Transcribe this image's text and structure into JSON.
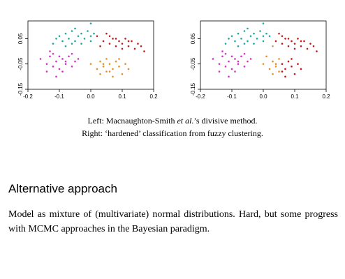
{
  "caption_left": {
    "prefix": "Left: Macnaughton-Smith ",
    "italic": "et al.",
    "suffix": "’s divisive method."
  },
  "caption_right": "Right: ‘hardened’ classification from fuzzy clustering.",
  "section_heading": "Alternative approach",
  "body_text": "Model as mixture of (multivariate) normal distributions.  Hard, but some progress with MCMC approaches in the Bayesian paradigm.",
  "colors": {
    "cyan": "#1aa7a0",
    "red": "#c21a1a",
    "magenta": "#d630c6",
    "orange": "#e6902a"
  },
  "chart_data": [
    {
      "type": "scatter",
      "panel": "left",
      "xlim": [
        -0.2,
        0.2
      ],
      "ylim": [
        -0.15,
        0.12
      ],
      "x_ticks": [
        "-0.2",
        "-0.1",
        "0.0",
        "0.1",
        "0.2"
      ],
      "y_ticks": [
        "-0.15",
        "-0.05",
        "0.05"
      ],
      "x_tick_values": [
        -0.2,
        -0.1,
        0.0,
        0.1,
        0.2
      ],
      "y_tick_values": [
        -0.15,
        -0.05,
        0.05
      ],
      "series": [
        {
          "color": "cyan",
          "points": [
            [
              -0.12,
              0.03
            ],
            [
              -0.1,
              0.06
            ],
            [
              -0.09,
              0.04
            ],
            [
              -0.08,
              0.07
            ],
            [
              -0.07,
              0.05
            ],
            [
              -0.06,
              0.08
            ],
            [
              -0.05,
              0.04
            ],
            [
              -0.04,
              0.06
            ],
            [
              -0.03,
              0.07
            ],
            [
              -0.02,
              0.05
            ],
            [
              -0.01,
              0.08
            ],
            [
              0.0,
              0.06
            ],
            [
              0.01,
              0.07
            ],
            [
              -0.11,
              0.05
            ],
            [
              -0.08,
              0.02
            ],
            [
              -0.06,
              0.03
            ],
            [
              -0.03,
              0.03
            ],
            [
              0.0,
              0.04
            ],
            [
              -0.05,
              0.09
            ],
            [
              0.0,
              0.11
            ]
          ]
        },
        {
          "color": "red",
          "points": [
            [
              0.02,
              0.06
            ],
            [
              0.04,
              0.04
            ],
            [
              0.05,
              0.07
            ],
            [
              0.06,
              0.03
            ],
            [
              0.07,
              0.05
            ],
            [
              0.08,
              0.02
            ],
            [
              0.09,
              0.04
            ],
            [
              0.1,
              0.03
            ],
            [
              0.11,
              0.05
            ],
            [
              0.12,
              0.02
            ],
            [
              0.13,
              0.04
            ],
            [
              0.14,
              0.01
            ],
            [
              0.15,
              0.03
            ],
            [
              0.16,
              0.02
            ],
            [
              0.17,
              0.0
            ],
            [
              0.06,
              0.06
            ],
            [
              0.03,
              0.02
            ],
            [
              0.08,
              0.05
            ],
            [
              0.1,
              0.01
            ],
            [
              0.12,
              0.04
            ]
          ]
        },
        {
          "color": "magenta",
          "points": [
            [
              -0.16,
              -0.03
            ],
            [
              -0.14,
              -0.05
            ],
            [
              -0.13,
              -0.02
            ],
            [
              -0.12,
              -0.06
            ],
            [
              -0.11,
              -0.04
            ],
            [
              -0.1,
              -0.07
            ],
            [
              -0.09,
              -0.03
            ],
            [
              -0.08,
              -0.05
            ],
            [
              -0.07,
              -0.02
            ],
            [
              -0.06,
              -0.06
            ],
            [
              -0.05,
              -0.04
            ],
            [
              -0.04,
              -0.03
            ],
            [
              -0.12,
              -0.01
            ],
            [
              -0.09,
              -0.08
            ],
            [
              -0.11,
              -0.1
            ],
            [
              -0.13,
              0.0
            ],
            [
              -0.06,
              -0.01
            ],
            [
              -0.08,
              -0.04
            ],
            [
              -0.1,
              -0.02
            ],
            [
              -0.14,
              -0.08
            ]
          ]
        },
        {
          "color": "orange",
          "points": [
            [
              0.0,
              -0.05
            ],
            [
              0.02,
              -0.07
            ],
            [
              0.03,
              -0.04
            ],
            [
              0.04,
              -0.06
            ],
            [
              0.05,
              -0.08
            ],
            [
              0.06,
              -0.05
            ],
            [
              0.07,
              -0.07
            ],
            [
              0.08,
              -0.04
            ],
            [
              0.09,
              -0.06
            ],
            [
              0.1,
              -0.09
            ],
            [
              0.11,
              -0.05
            ],
            [
              0.12,
              -0.07
            ],
            [
              0.05,
              -0.03
            ],
            [
              0.07,
              -0.1
            ],
            [
              0.03,
              -0.09
            ],
            [
              0.09,
              -0.03
            ],
            [
              0.04,
              -0.05
            ],
            [
              0.06,
              -0.08
            ]
          ]
        }
      ]
    },
    {
      "type": "scatter",
      "panel": "right",
      "xlim": [
        -0.2,
        0.2
      ],
      "ylim": [
        -0.15,
        0.12
      ],
      "x_ticks": [
        "-0.2",
        "-0.1",
        "0.0",
        "0.1",
        "0.2"
      ],
      "y_ticks": [
        "-0.15",
        "-0.05",
        "0.05"
      ],
      "x_tick_values": [
        -0.2,
        -0.1,
        0.0,
        0.1,
        0.2
      ],
      "y_tick_values": [
        -0.15,
        -0.05,
        0.05
      ],
      "series": [
        {
          "color": "cyan",
          "points": [
            [
              -0.12,
              0.03
            ],
            [
              -0.1,
              0.06
            ],
            [
              -0.09,
              0.04
            ],
            [
              -0.08,
              0.07
            ],
            [
              -0.07,
              0.05
            ],
            [
              -0.06,
              0.08
            ],
            [
              -0.05,
              0.04
            ],
            [
              -0.04,
              0.06
            ],
            [
              -0.03,
              0.07
            ],
            [
              -0.02,
              0.05
            ],
            [
              -0.01,
              0.08
            ],
            [
              0.0,
              0.06
            ],
            [
              0.01,
              0.07
            ],
            [
              0.02,
              0.06
            ],
            [
              -0.11,
              0.05
            ],
            [
              -0.08,
              0.02
            ],
            [
              -0.06,
              0.03
            ],
            [
              -0.03,
              0.03
            ],
            [
              0.0,
              0.04
            ],
            [
              -0.05,
              0.09
            ],
            [
              0.0,
              0.11
            ]
          ]
        },
        {
          "color": "red",
          "points": [
            [
              0.04,
              0.04
            ],
            [
              0.05,
              0.07
            ],
            [
              0.06,
              0.03
            ],
            [
              0.07,
              0.05
            ],
            [
              0.08,
              0.02
            ],
            [
              0.09,
              0.04
            ],
            [
              0.1,
              0.03
            ],
            [
              0.11,
              0.05
            ],
            [
              0.12,
              0.02
            ],
            [
              0.13,
              0.04
            ],
            [
              0.14,
              0.01
            ],
            [
              0.15,
              0.03
            ],
            [
              0.16,
              0.02
            ],
            [
              0.17,
              0.0
            ],
            [
              0.06,
              0.06
            ],
            [
              0.08,
              0.05
            ],
            [
              0.1,
              0.01
            ],
            [
              0.12,
              0.04
            ],
            [
              0.06,
              -0.05
            ],
            [
              0.07,
              -0.07
            ],
            [
              0.08,
              -0.04
            ],
            [
              0.09,
              -0.06
            ],
            [
              0.1,
              -0.09
            ],
            [
              0.11,
              -0.05
            ],
            [
              0.12,
              -0.07
            ],
            [
              0.07,
              -0.1
            ],
            [
              0.09,
              -0.03
            ],
            [
              0.06,
              -0.08
            ]
          ]
        },
        {
          "color": "magenta",
          "points": [
            [
              -0.16,
              -0.03
            ],
            [
              -0.14,
              -0.05
            ],
            [
              -0.13,
              -0.02
            ],
            [
              -0.12,
              -0.06
            ],
            [
              -0.11,
              -0.04
            ],
            [
              -0.1,
              -0.07
            ],
            [
              -0.09,
              -0.03
            ],
            [
              -0.08,
              -0.05
            ],
            [
              -0.07,
              -0.02
            ],
            [
              -0.06,
              -0.06
            ],
            [
              -0.05,
              -0.04
            ],
            [
              -0.04,
              -0.03
            ],
            [
              -0.12,
              -0.01
            ],
            [
              -0.09,
              -0.08
            ],
            [
              -0.11,
              -0.1
            ],
            [
              -0.13,
              0.0
            ],
            [
              -0.06,
              -0.01
            ],
            [
              -0.08,
              -0.04
            ],
            [
              -0.1,
              -0.02
            ],
            [
              -0.14,
              -0.08
            ]
          ]
        },
        {
          "color": "orange",
          "points": [
            [
              0.0,
              -0.05
            ],
            [
              0.02,
              -0.07
            ],
            [
              0.03,
              -0.04
            ],
            [
              0.04,
              -0.06
            ],
            [
              0.05,
              -0.08
            ],
            [
              0.05,
              -0.03
            ],
            [
              0.03,
              -0.09
            ],
            [
              0.04,
              -0.05
            ],
            [
              0.03,
              0.02
            ],
            [
              0.01,
              -0.02
            ]
          ]
        }
      ]
    }
  ]
}
